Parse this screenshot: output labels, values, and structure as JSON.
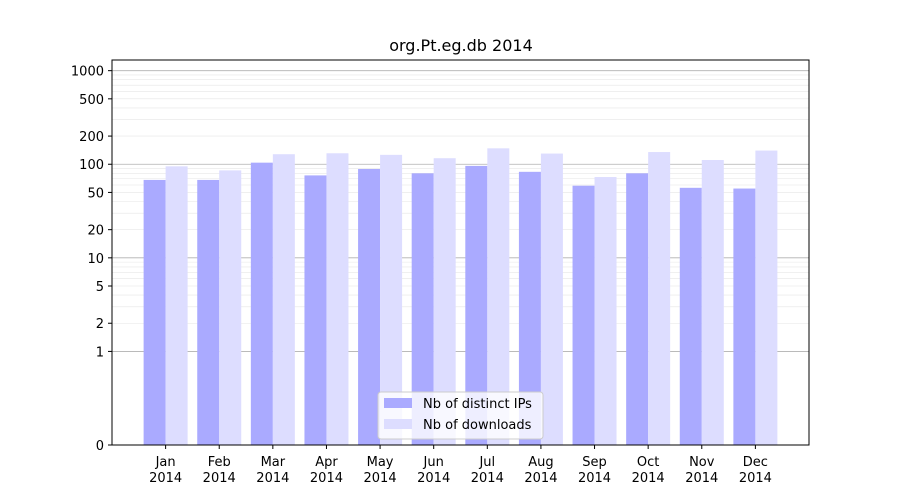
{
  "chart_data": {
    "type": "bar",
    "title": "org.Pt.eg.db 2014",
    "xlabel": "",
    "ylabel": "",
    "categories": [
      [
        "Jan",
        "2014"
      ],
      [
        "Feb",
        "2014"
      ],
      [
        "Mar",
        "2014"
      ],
      [
        "Apr",
        "2014"
      ],
      [
        "May",
        "2014"
      ],
      [
        "Jun",
        "2014"
      ],
      [
        "Jul",
        "2014"
      ],
      [
        "Aug",
        "2014"
      ],
      [
        "Sep",
        "2014"
      ],
      [
        "Oct",
        "2014"
      ],
      [
        "Nov",
        "2014"
      ],
      [
        "Dec",
        "2014"
      ]
    ],
    "series": [
      {
        "name": "Nb of distinct IPs",
        "color": "#aaaaff",
        "values": [
          68,
          68,
          104,
          76,
          89,
          80,
          96,
          83,
          59,
          80,
          56,
          55
        ]
      },
      {
        "name": "Nb of downloads",
        "color": "#ddddff",
        "values": [
          95,
          86,
          128,
          131,
          126,
          116,
          148,
          130,
          73,
          135,
          111,
          140
        ]
      }
    ],
    "yscale": "symlog",
    "ylim": [
      0,
      1300
    ],
    "yticks": [
      0,
      1,
      2,
      5,
      10,
      20,
      50,
      100,
      200,
      500,
      1000
    ],
    "ytick_labels": [
      "0",
      "1",
      "2",
      "5",
      "10",
      "20",
      "50",
      "100",
      "200",
      "500",
      "1000"
    ],
    "grid": true,
    "legend_position": "lower-center"
  }
}
